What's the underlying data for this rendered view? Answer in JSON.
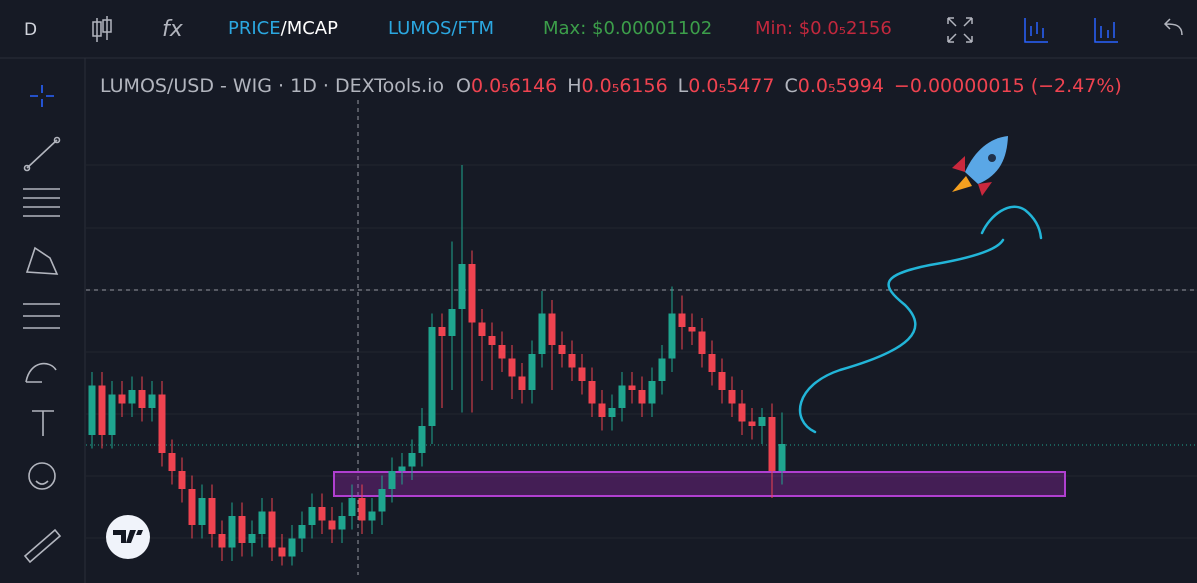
{
  "toolbar": {
    "resolution": "D",
    "formula": "fx",
    "price": "PRICE",
    "mcap": "/MCAP",
    "pair": "LUMOS/FTM",
    "max": "Max: $0.00001102",
    "min": "Min: $0.0₅2156"
  },
  "header": {
    "symbol": "LUMOS/USD - WIG · 1D · DEXTools.io",
    "o_label": "O",
    "o": "0.0₅6146",
    "h_label": "H",
    "h": "0.0₅6156",
    "l_label": "L",
    "l": "0.0₅5477",
    "c_label": "C",
    "c": "0.0₅5994",
    "change": "−0.00000015 (−2.47%)"
  },
  "chart_data": {
    "type": "candlestick",
    "up_color": "#1fa58f",
    "down_color": "#ef4350",
    "ylim": [
      0,
      100
    ],
    "open": [
      30,
      41,
      30,
      39,
      37,
      40,
      36,
      39,
      26,
      22,
      18,
      10,
      16,
      8,
      5,
      12,
      6,
      8,
      13,
      5,
      3,
      7,
      10,
      14,
      11,
      9,
      12,
      16,
      11,
      13,
      18,
      22,
      23,
      26,
      32,
      54,
      52,
      58,
      68,
      55,
      52,
      50,
      47,
      43,
      40,
      48,
      57,
      50,
      48,
      45,
      42,
      37,
      34,
      36,
      41,
      40,
      37,
      42,
      47,
      57,
      54,
      53,
      48,
      44,
      40,
      37,
      33,
      32,
      34,
      22
    ],
    "high": [
      44,
      44,
      42,
      42,
      43,
      43,
      42,
      42,
      29,
      25,
      21,
      19,
      19,
      11,
      15,
      15,
      11,
      16,
      16,
      8,
      10,
      13,
      17,
      17,
      14,
      15,
      19,
      19,
      16,
      21,
      25,
      26,
      29,
      36,
      57,
      57,
      73,
      90,
      71,
      58,
      55,
      53,
      50,
      46,
      51,
      62,
      60,
      53,
      51,
      48,
      45,
      40,
      39,
      44,
      44,
      43,
      45,
      50,
      63,
      61,
      57,
      56,
      51,
      47,
      43,
      40,
      36,
      36,
      37,
      35
    ],
    "low": [
      27,
      27,
      27,
      34,
      34,
      33,
      33,
      23,
      19,
      15,
      7,
      7,
      5,
      2,
      2,
      3,
      3,
      5,
      2,
      1,
      1,
      4,
      7,
      8,
      6,
      6,
      9,
      8,
      8,
      10,
      15,
      19,
      20,
      23,
      28,
      36,
      40,
      35,
      35,
      42,
      40,
      44,
      38,
      37,
      37,
      45,
      40,
      45,
      42,
      39,
      34,
      31,
      31,
      33,
      37,
      34,
      34,
      39,
      44,
      49,
      50,
      45,
      41,
      37,
      34,
      30,
      29,
      28,
      16,
      19
    ],
    "close": [
      41,
      30,
      39,
      37,
      40,
      36,
      39,
      26,
      22,
      18,
      10,
      16,
      8,
      5,
      12,
      6,
      8,
      13,
      5,
      3,
      7,
      10,
      14,
      11,
      9,
      12,
      16,
      11,
      13,
      18,
      22,
      23,
      26,
      32,
      54,
      52,
      58,
      68,
      55,
      52,
      50,
      47,
      43,
      40,
      48,
      57,
      50,
      48,
      45,
      42,
      37,
      34,
      36,
      41,
      40,
      37,
      42,
      47,
      57,
      54,
      53,
      48,
      44,
      40,
      37,
      33,
      32,
      34,
      22,
      28
    ]
  }
}
